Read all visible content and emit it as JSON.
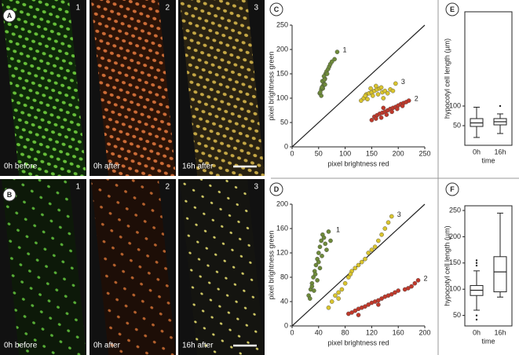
{
  "panels": [
    {
      "letter": "A",
      "images": [
        {
          "number": "1",
          "caption": "0h before"
        },
        {
          "number": "2",
          "caption": "0h after"
        },
        {
          "number": "3",
          "caption": "16h after"
        }
      ]
    },
    {
      "letter": "B",
      "images": [
        {
          "number": "1",
          "caption": "0h before"
        },
        {
          "number": "2",
          "caption": "0h after"
        },
        {
          "number": "3",
          "caption": "16h after"
        }
      ]
    }
  ],
  "chart_data": [
    {
      "type": "scatter",
      "letter": "C",
      "xlabel": "pixel brightness red",
      "ylabel": "pixel brightness green",
      "xlim": [
        0,
        250
      ],
      "ylim": [
        0,
        250
      ],
      "xticks": [
        0,
        50,
        100,
        150,
        200,
        250
      ],
      "yticks": [
        0,
        50,
        100,
        150,
        200,
        250
      ],
      "series": [
        {
          "name": "1",
          "color": "#6e8a3a",
          "x": [
            52,
            55,
            58,
            60,
            62,
            55,
            57,
            63,
            65,
            60,
            68,
            70,
            58,
            62,
            72,
            75,
            80,
            85,
            66,
            53,
            56,
            61
          ],
          "values": [
            110,
            118,
            125,
            130,
            140,
            105,
            135,
            150,
            155,
            145,
            160,
            165,
            120,
            128,
            170,
            175,
            180,
            195,
            150,
            112,
            122,
            138
          ]
        },
        {
          "name": "3",
          "color": "#d9c42e",
          "x": [
            130,
            135,
            140,
            145,
            150,
            155,
            160,
            165,
            170,
            175,
            180,
            185,
            142,
            152,
            162,
            172,
            148,
            158,
            168,
            190,
            195,
            138
          ],
          "values": [
            95,
            100,
            108,
            110,
            112,
            115,
            118,
            120,
            112,
            115,
            110,
            118,
            98,
            105,
            108,
            100,
            120,
            125,
            122,
            115,
            130,
            105
          ]
        },
        {
          "name": "2",
          "color": "#c0392b",
          "x": [
            150,
            155,
            160,
            165,
            170,
            175,
            180,
            185,
            190,
            195,
            200,
            205,
            210,
            215,
            220,
            168,
            178,
            188,
            198,
            208,
            158,
            172
          ],
          "values": [
            55,
            62,
            65,
            68,
            70,
            72,
            75,
            78,
            80,
            82,
            85,
            88,
            90,
            92,
            95,
            60,
            66,
            72,
            78,
            84,
            58,
            80
          ]
        }
      ]
    },
    {
      "type": "scatter",
      "letter": "D",
      "xlabel": "pixel brightness red",
      "ylabel": "pixel brightness green",
      "xlim": [
        0,
        200
      ],
      "ylim": [
        0,
        200
      ],
      "xticks": [
        0,
        40,
        80,
        120,
        160,
        200
      ],
      "yticks": [
        0,
        40,
        80,
        120,
        160,
        200
      ],
      "series": [
        {
          "name": "1",
          "color": "#6e8a3a",
          "x": [
            25,
            28,
            30,
            32,
            34,
            36,
            38,
            40,
            42,
            44,
            46,
            48,
            50,
            52,
            55,
            58,
            30,
            35,
            40,
            45,
            38,
            42,
            33,
            27
          ],
          "values": [
            50,
            60,
            70,
            80,
            90,
            100,
            110,
            120,
            130,
            140,
            150,
            145,
            135,
            125,
            155,
            140,
            65,
            85,
            105,
            115,
            75,
            95,
            58,
            45
          ]
        },
        {
          "name": "3",
          "color": "#d9c42e",
          "x": [
            55,
            60,
            65,
            70,
            75,
            80,
            85,
            90,
            95,
            100,
            105,
            110,
            115,
            120,
            125,
            130,
            135,
            140,
            145,
            150,
            70,
            88
          ],
          "values": [
            30,
            40,
            50,
            55,
            60,
            70,
            80,
            90,
            95,
            100,
            105,
            110,
            120,
            125,
            130,
            140,
            150,
            160,
            170,
            180,
            45,
            85
          ]
        },
        {
          "name": "2",
          "color": "#c0392b",
          "x": [
            85,
            90,
            95,
            100,
            105,
            110,
            115,
            120,
            125,
            130,
            135,
            140,
            145,
            150,
            155,
            160,
            170,
            175,
            180,
            185,
            190,
            100,
            130
          ],
          "values": [
            20,
            22,
            25,
            28,
            30,
            32,
            35,
            38,
            40,
            42,
            45,
            48,
            50,
            52,
            55,
            58,
            60,
            62,
            65,
            70,
            75,
            18,
            35
          ]
        }
      ]
    },
    {
      "type": "box",
      "letter": "E",
      "ylabel": "hypocotyl cell length (µm)",
      "xlabel": "time",
      "categories": [
        "0h",
        "16h"
      ],
      "ylim": [
        0,
        340
      ],
      "yticks": [
        50,
        100
      ],
      "boxes": [
        {
          "whislo": 20,
          "q1": 48,
          "med": 57,
          "q3": 68,
          "whishi": 97,
          "fliers": []
        },
        {
          "whislo": 30,
          "q1": 52,
          "med": 60,
          "q3": 68,
          "whishi": 80,
          "fliers": [
            100
          ]
        }
      ]
    },
    {
      "type": "box",
      "letter": "F",
      "ylabel": "hypocotyl cell length (µm)",
      "xlabel": "time",
      "categories": [
        "0h",
        "16h"
      ],
      "ylim": [
        30,
        259
      ],
      "yticks": [
        50,
        100,
        150,
        200,
        250
      ],
      "boxes": [
        {
          "whislo": 60,
          "q1": 88,
          "med": 98,
          "q3": 107,
          "whishi": 135,
          "fliers": [
            145,
            150,
            155,
            50,
            42
          ]
        },
        {
          "whislo": 85,
          "q1": 95,
          "med": 133,
          "q3": 162,
          "whishi": 245,
          "fliers": []
        }
      ]
    }
  ]
}
